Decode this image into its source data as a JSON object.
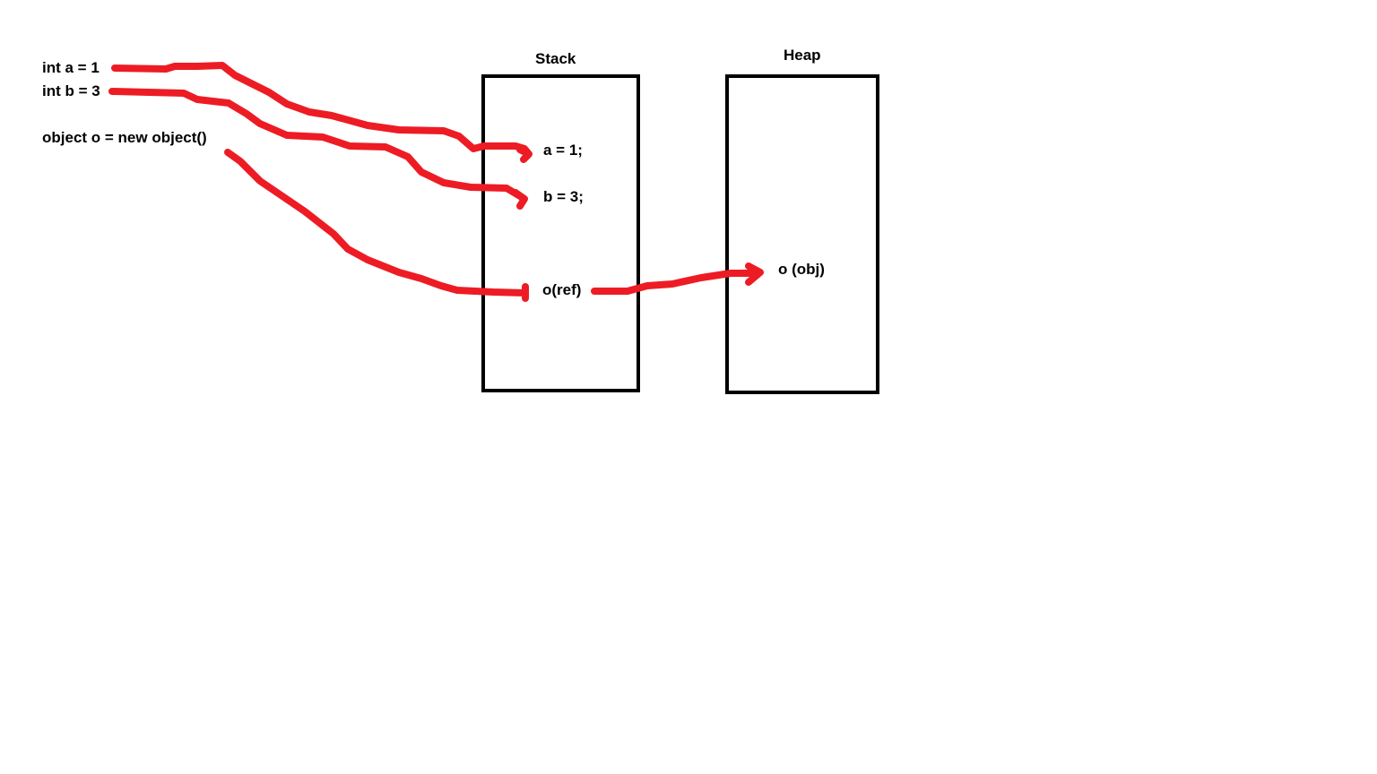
{
  "code": {
    "line_a": "int a = 1",
    "line_b": "int b = 3",
    "line_o": "object o = new object()"
  },
  "stack": {
    "title": "Stack",
    "entries": [
      "a = 1;",
      "b = 3;",
      "o(ref)"
    ]
  },
  "heap": {
    "title": "Heap",
    "entries": [
      "o (obj)"
    ]
  },
  "colors": {
    "arrow": "#ed1c24",
    "box_border": "#000000",
    "text": "#000000"
  }
}
